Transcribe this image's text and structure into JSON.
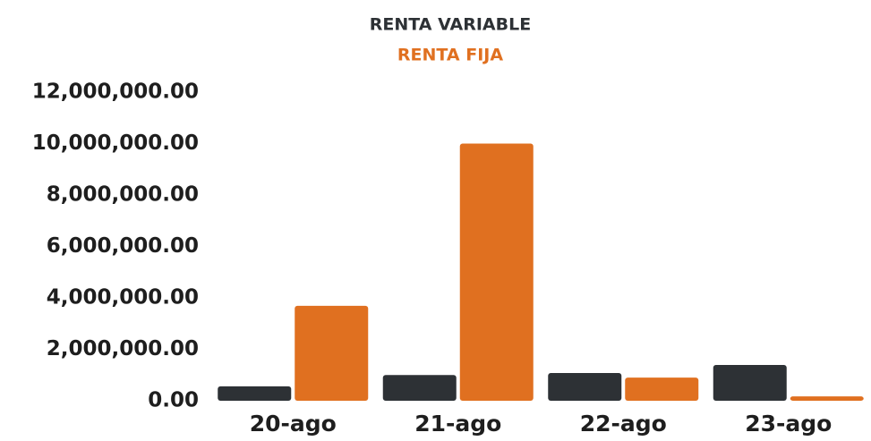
{
  "chart_data": {
    "type": "bar",
    "categories": [
      "20-ago",
      "21-ago",
      "22-ago",
      "23-ago"
    ],
    "series": [
      {
        "name": "RENTA VARIABLE",
        "color": "#2d3135",
        "values": [
          560000,
          1000000,
          1080000,
          1390000
        ]
      },
      {
        "name": "RENTA FIJA",
        "color": "#e07020",
        "values": [
          3690000,
          10000000,
          900000,
          170000
        ]
      }
    ],
    "ylim": [
      0,
      12000000
    ],
    "yticks": [
      {
        "value": 0,
        "label": "0.00"
      },
      {
        "value": 2000000,
        "label": "2,000,000.00"
      },
      {
        "value": 4000000,
        "label": "4,000,000.00"
      },
      {
        "value": 6000000,
        "label": "6,000,000.00"
      },
      {
        "value": 8000000,
        "label": "8,000,000.00"
      },
      {
        "value": 10000000,
        "label": "10,000,000.00"
      },
      {
        "value": 12000000,
        "label": "12,000,000.00"
      }
    ],
    "grid": false,
    "legend": "top"
  }
}
